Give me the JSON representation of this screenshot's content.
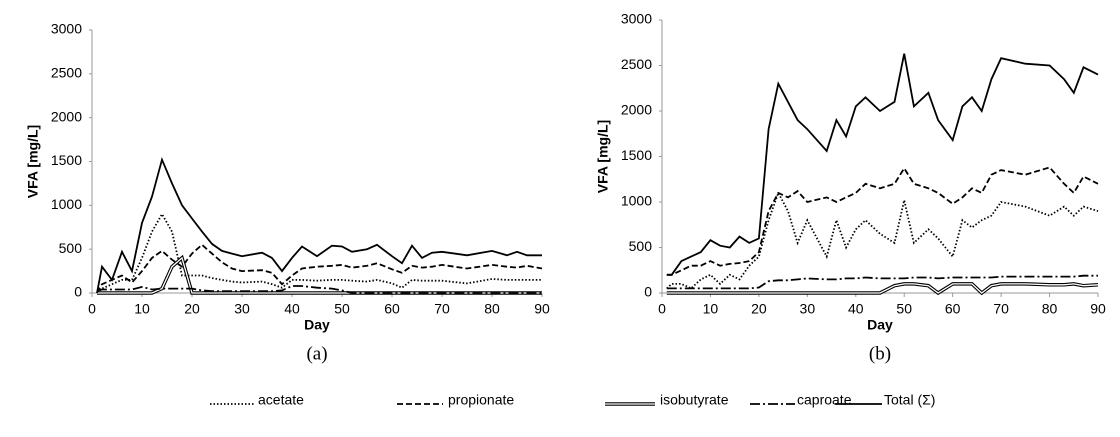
{
  "chart_data": [
    {
      "type": "line",
      "panel": "(a)",
      "xlabel": "Day",
      "ylabel": "VFA [mg/L]",
      "xlim": [
        0,
        90
      ],
      "xticks": [
        0,
        10,
        20,
        30,
        40,
        50,
        60,
        70,
        80,
        90
      ],
      "ylim": [
        0,
        3000
      ],
      "yticks": [
        0,
        500,
        1000,
        1500,
        2000,
        2500,
        3000
      ],
      "x": [
        1,
        2,
        4,
        6,
        8,
        10,
        12,
        14,
        16,
        18,
        20,
        22,
        24,
        26,
        28,
        30,
        34,
        36,
        38,
        40,
        42,
        45,
        48,
        50,
        52,
        55,
        57,
        60,
        62,
        64,
        66,
        68,
        70,
        75,
        80,
        83,
        85,
        87,
        90
      ],
      "series": [
        {
          "name": "acetate",
          "color": "#000000",
          "dash": "dotted",
          "values": [
            0,
            50,
            100,
            150,
            150,
            400,
            700,
            900,
            700,
            200,
            200,
            200,
            170,
            150,
            130,
            120,
            130,
            100,
            60,
            150,
            150,
            140,
            150,
            150,
            140,
            130,
            150,
            110,
            60,
            150,
            140,
            140,
            140,
            110,
            160,
            150,
            150,
            150,
            150
          ]
        },
        {
          "name": "propionate",
          "color": "#000000",
          "dash": "dashed",
          "values": [
            0,
            100,
            150,
            200,
            120,
            250,
            400,
            480,
            380,
            300,
            450,
            550,
            450,
            350,
            280,
            250,
            260,
            230,
            100,
            200,
            280,
            300,
            310,
            320,
            290,
            310,
            340,
            270,
            230,
            310,
            290,
            300,
            320,
            280,
            320,
            300,
            290,
            310,
            280
          ]
        },
        {
          "name": "isobutyrate",
          "color": "#000000",
          "dash": "double",
          "values": [
            0,
            0,
            0,
            0,
            0,
            0,
            0,
            50,
            300,
            400,
            0,
            0,
            0,
            0,
            0,
            0,
            0,
            0,
            0,
            0,
            0,
            0,
            0,
            0,
            0,
            0,
            0,
            0,
            0,
            0,
            0,
            0,
            0,
            0,
            0,
            0,
            0,
            0,
            0
          ]
        },
        {
          "name": "caproate",
          "color": "#000000",
          "dash": "dashdot",
          "values": [
            30,
            40,
            40,
            40,
            40,
            70,
            40,
            50,
            50,
            50,
            50,
            30,
            20,
            20,
            20,
            20,
            20,
            20,
            30,
            80,
            80,
            60,
            50,
            30,
            0,
            0,
            0,
            0,
            0,
            0,
            0,
            0,
            0,
            0,
            0,
            0,
            0,
            0,
            0
          ]
        },
        {
          "name": "Total (Σ)",
          "color": "#000000",
          "dash": "solid",
          "values": [
            0,
            300,
            150,
            470,
            250,
            800,
            1100,
            1520,
            1250,
            1000,
            850,
            700,
            560,
            480,
            450,
            420,
            460,
            400,
            250,
            400,
            530,
            420,
            540,
            530,
            470,
            500,
            550,
            420,
            340,
            540,
            400,
            460,
            470,
            430,
            480,
            430,
            470,
            430,
            430
          ]
        }
      ]
    },
    {
      "type": "line",
      "panel": "(b)",
      "xlabel": "Day",
      "ylabel": "VFA [mg/L]",
      "xlim": [
        0,
        90
      ],
      "xticks": [
        0,
        10,
        20,
        30,
        40,
        50,
        60,
        70,
        80,
        90
      ],
      "ylim": [
        0,
        3000
      ],
      "yticks": [
        0,
        500,
        1000,
        1500,
        2000,
        2500,
        3000
      ],
      "x": [
        1,
        2,
        4,
        6,
        8,
        10,
        12,
        14,
        16,
        18,
        20,
        22,
        24,
        26,
        28,
        30,
        34,
        36,
        38,
        40,
        42,
        45,
        48,
        50,
        52,
        55,
        57,
        60,
        62,
        64,
        66,
        68,
        70,
        75,
        80,
        83,
        85,
        87,
        90
      ],
      "series": [
        {
          "name": "acetate",
          "color": "#000000",
          "dash": "dotted",
          "values": [
            50,
            100,
            100,
            50,
            150,
            200,
            100,
            200,
            150,
            300,
            400,
            800,
            1100,
            900,
            550,
            800,
            400,
            800,
            500,
            700,
            800,
            650,
            550,
            1020,
            550,
            700,
            600,
            400,
            800,
            720,
            800,
            850,
            1000,
            950,
            850,
            950,
            850,
            950,
            900
          ]
        },
        {
          "name": "propionate",
          "color": "#000000",
          "dash": "dashed",
          "values": [
            200,
            200,
            250,
            300,
            300,
            350,
            300,
            320,
            330,
            350,
            450,
            900,
            1100,
            1050,
            1120,
            1000,
            1050,
            1000,
            1050,
            1100,
            1200,
            1150,
            1200,
            1370,
            1200,
            1150,
            1100,
            980,
            1050,
            1150,
            1100,
            1300,
            1350,
            1300,
            1380,
            1200,
            1100,
            1280,
            1200
          ]
        },
        {
          "name": "isobutyrate",
          "color": "#000000",
          "dash": "double",
          "values": [
            0,
            0,
            0,
            0,
            0,
            0,
            0,
            0,
            0,
            0,
            0,
            0,
            0,
            0,
            0,
            0,
            0,
            0,
            0,
            0,
            0,
            0,
            80,
            100,
            100,
            80,
            0,
            100,
            100,
            100,
            0,
            80,
            100,
            100,
            90,
            90,
            100,
            80,
            90
          ]
        },
        {
          "name": "caproate",
          "color": "#000000",
          "dash": "dashdot",
          "values": [
            50,
            50,
            50,
            50,
            50,
            50,
            50,
            50,
            50,
            50,
            60,
            130,
            140,
            140,
            150,
            160,
            150,
            150,
            160,
            160,
            170,
            160,
            160,
            160,
            170,
            170,
            160,
            170,
            170,
            170,
            170,
            170,
            180,
            180,
            180,
            180,
            180,
            190,
            190
          ]
        },
        {
          "name": "Total (Σ)",
          "color": "#000000",
          "dash": "solid",
          "values": [
            200,
            200,
            350,
            400,
            450,
            580,
            520,
            500,
            620,
            550,
            600,
            1800,
            2300,
            2100,
            1900,
            1800,
            1560,
            1900,
            1720,
            2050,
            2150,
            2000,
            2100,
            2630,
            2050,
            2200,
            1900,
            1680,
            2050,
            2150,
            2000,
            2350,
            2580,
            2520,
            2500,
            2350,
            2200,
            2480,
            2400
          ]
        }
      ]
    }
  ]
}
